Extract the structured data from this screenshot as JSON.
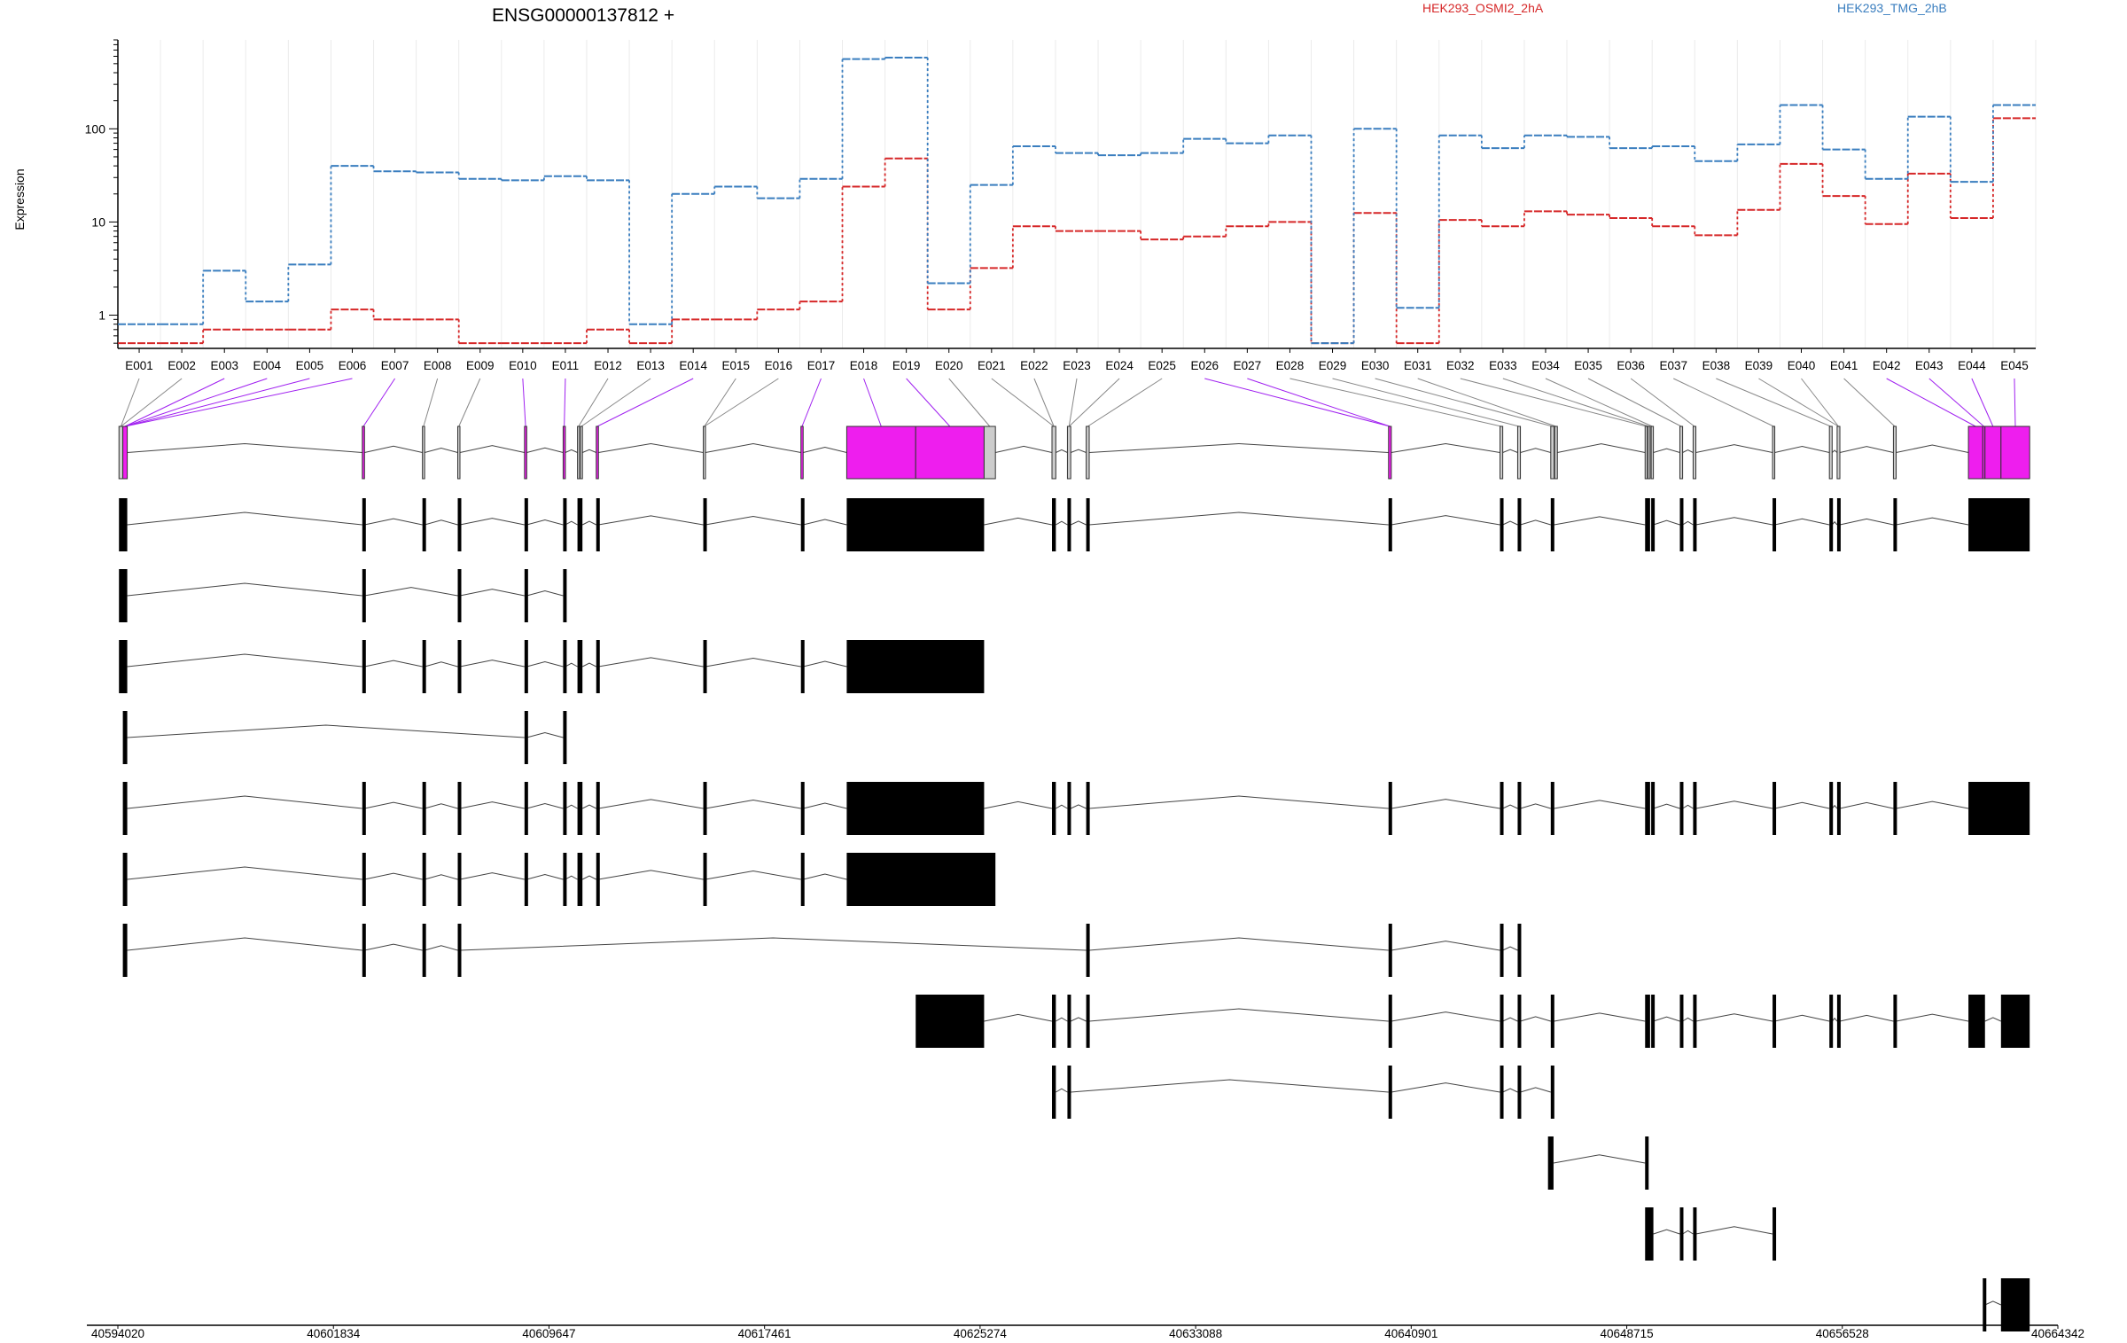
{
  "header": {
    "gene_title": "ENSG00000137812 +",
    "y_axis_label": "Expression"
  },
  "colors": {
    "sample_a": "#d62728",
    "sample_b": "#3a7ebf",
    "highlight_exon": "#ee1eee",
    "normal_exon": "#cccccc",
    "transcript": "#000000"
  },
  "chart_data": {
    "type": "line",
    "y_scale": "log",
    "ylabel": "Expression",
    "y_ticks": [
      "1",
      "10",
      "100"
    ],
    "categories": [
      "E001",
      "E002",
      "E003",
      "E004",
      "E005",
      "E006",
      "E007",
      "E008",
      "E009",
      "E010",
      "E011",
      "E012",
      "E013",
      "E014",
      "E015",
      "E016",
      "E017",
      "E018",
      "E019",
      "E020",
      "E021",
      "E022",
      "E023",
      "E024",
      "E025",
      "E026",
      "E027",
      "E028",
      "E029",
      "E030",
      "E031",
      "E032",
      "E033",
      "E034",
      "E035",
      "E036",
      "E037",
      "E038",
      "E039",
      "E040",
      "E041",
      "E042",
      "E043",
      "E044",
      "E045"
    ],
    "series": [
      {
        "name": "HEK293_OSMI2_2hA",
        "color": "#d62728",
        "values": [
          0.5,
          0.5,
          0.7,
          0.7,
          0.7,
          1.15,
          0.9,
          0.9,
          0.5,
          0.5,
          0.5,
          0.7,
          0.5,
          0.9,
          0.9,
          1.15,
          1.4,
          24,
          48,
          1.15,
          3.2,
          9,
          8,
          8,
          6.5,
          7,
          9,
          10,
          0.5,
          12.5,
          0.5,
          10.5,
          9,
          13,
          12,
          11,
          9,
          7.2,
          13.5,
          42,
          19,
          9.5,
          33,
          11,
          130
        ]
      },
      {
        "name": "HEK293_TMG_2hB",
        "color": "#3a7ebf",
        "values": [
          0.8,
          0.8,
          3.0,
          1.4,
          3.5,
          40,
          35,
          34,
          29,
          28,
          31,
          28,
          0.8,
          20,
          24,
          18,
          29,
          560,
          580,
          2.2,
          25,
          65,
          55,
          52,
          55,
          78,
          70,
          85,
          0.5,
          100,
          1.2,
          85,
          62,
          85,
          82,
          62,
          65,
          45,
          68,
          180,
          60,
          29,
          135,
          27,
          180
        ]
      }
    ],
    "genomic_axis_ticks": [
      "40594020",
      "40601834",
      "40609647",
      "40617461",
      "40625274",
      "40633088",
      "40640901",
      "40648715",
      "40656528",
      "40664342"
    ],
    "exon_bins": [
      {
        "s": 40594060,
        "e": 40594200,
        "hl": false
      },
      {
        "s": 40594200,
        "e": 40594360,
        "hl": true
      },
      {
        "s": 40602880,
        "e": 40602960,
        "hl": true
      },
      {
        "s": 40605060,
        "e": 40605140,
        "hl": false
      },
      {
        "s": 40606340,
        "e": 40606420,
        "hl": false
      },
      {
        "s": 40608760,
        "e": 40608840,
        "hl": true
      },
      {
        "s": 40610160,
        "e": 40610240,
        "hl": true
      },
      {
        "s": 40610680,
        "e": 40610760,
        "hl": false
      },
      {
        "s": 40610780,
        "e": 40610860,
        "hl": false
      },
      {
        "s": 40611360,
        "e": 40611440,
        "hl": true
      },
      {
        "s": 40615240,
        "e": 40615320,
        "hl": false
      },
      {
        "s": 40618780,
        "e": 40618860,
        "hl": true
      },
      {
        "s": 40620440,
        "e": 40622940,
        "hl": true
      },
      {
        "s": 40622940,
        "e": 40625420,
        "hl": true
      },
      {
        "s": 40625420,
        "e": 40625830,
        "hl": false
      },
      {
        "s": 40627880,
        "e": 40628020,
        "hl": false
      },
      {
        "s": 40628440,
        "e": 40628560,
        "hl": false
      },
      {
        "s": 40629120,
        "e": 40629230,
        "hl": false
      },
      {
        "s": 40640080,
        "e": 40640180,
        "hl": true
      },
      {
        "s": 40644120,
        "e": 40644220,
        "hl": false
      },
      {
        "s": 40644760,
        "e": 40644860,
        "hl": false
      },
      {
        "s": 40645960,
        "e": 40646080,
        "hl": false
      },
      {
        "s": 40646100,
        "e": 40646200,
        "hl": false
      },
      {
        "s": 40649380,
        "e": 40649460,
        "hl": false
      },
      {
        "s": 40649480,
        "e": 40649560,
        "hl": false
      },
      {
        "s": 40649600,
        "e": 40649680,
        "hl": false
      },
      {
        "s": 40650640,
        "e": 40650740,
        "hl": false
      },
      {
        "s": 40651120,
        "e": 40651220,
        "hl": false
      },
      {
        "s": 40654000,
        "e": 40654080,
        "hl": false
      },
      {
        "s": 40656060,
        "e": 40656160,
        "hl": false
      },
      {
        "s": 40656340,
        "e": 40656440,
        "hl": false
      },
      {
        "s": 40658380,
        "e": 40658480,
        "hl": false
      },
      {
        "s": 40661100,
        "e": 40661620,
        "hl": true
      },
      {
        "s": 40661620,
        "e": 40661700,
        "hl": true
      },
      {
        "s": 40661700,
        "e": 40662280,
        "hl": true
      },
      {
        "s": 40662280,
        "e": 40663320,
        "hl": true
      }
    ],
    "exon_bin_links": [
      0,
      0,
      1,
      1,
      1,
      1,
      2,
      3,
      4,
      5,
      6,
      7,
      8,
      9,
      10,
      10,
      11,
      12,
      13,
      14,
      15,
      15,
      16,
      16,
      17,
      18,
      18,
      19,
      20,
      21,
      22,
      23,
      24,
      25,
      26,
      27,
      28,
      29,
      30,
      30,
      31,
      32,
      33,
      34,
      35
    ],
    "transcripts": [
      {
        "exons": [
          [
            40594060,
            40594360
          ],
          [
            40602880,
            40602960
          ],
          [
            40605060,
            40605140
          ],
          [
            40606340,
            40606420
          ],
          [
            40608760,
            40608840
          ],
          [
            40610160,
            40610240
          ],
          [
            40610680,
            40610860
          ],
          [
            40611360,
            40611440
          ],
          [
            40615240,
            40615320
          ],
          [
            40618780,
            40618860
          ],
          [
            40620440,
            40625420
          ],
          [
            40627880,
            40628020
          ],
          [
            40628440,
            40628560
          ],
          [
            40629120,
            40629230
          ],
          [
            40640080,
            40640180
          ],
          [
            40644120,
            40644220
          ],
          [
            40644760,
            40644860
          ],
          [
            40645960,
            40646080
          ],
          [
            40649380,
            40649560
          ],
          [
            40649600,
            40649680
          ],
          [
            40650640,
            40650740
          ],
          [
            40651120,
            40651220
          ],
          [
            40654000,
            40654080
          ],
          [
            40656060,
            40656160
          ],
          [
            40656340,
            40656440
          ],
          [
            40658380,
            40658480
          ],
          [
            40661100,
            40663320
          ]
        ]
      },
      {
        "exons": [
          [
            40594060,
            40594360
          ],
          [
            40602880,
            40602960
          ],
          [
            40606340,
            40606420
          ],
          [
            40608760,
            40608840
          ],
          [
            40610160,
            40610240
          ]
        ]
      },
      {
        "exons": [
          [
            40594060,
            40594360
          ],
          [
            40602880,
            40602960
          ],
          [
            40605060,
            40605140
          ],
          [
            40606340,
            40606420
          ],
          [
            40608760,
            40608840
          ],
          [
            40610160,
            40610240
          ],
          [
            40610680,
            40610860
          ],
          [
            40611360,
            40611440
          ],
          [
            40615240,
            40615320
          ],
          [
            40618780,
            40618860
          ],
          [
            40620440,
            40625420
          ]
        ]
      },
      {
        "exons": [
          [
            40594200,
            40594360
          ],
          [
            40608760,
            40608840
          ],
          [
            40610160,
            40610240
          ]
        ]
      },
      {
        "exons": [
          [
            40594200,
            40594360
          ],
          [
            40602880,
            40602960
          ],
          [
            40605060,
            40605140
          ],
          [
            40606340,
            40606420
          ],
          [
            40608760,
            40608840
          ],
          [
            40610160,
            40610240
          ],
          [
            40610680,
            40610860
          ],
          [
            40611360,
            40611440
          ],
          [
            40615240,
            40615320
          ],
          [
            40618780,
            40618860
          ],
          [
            40620440,
            40625420
          ],
          [
            40627880,
            40628020
          ],
          [
            40628440,
            40628560
          ],
          [
            40629120,
            40629230
          ],
          [
            40640080,
            40640180
          ],
          [
            40644120,
            40644220
          ],
          [
            40644760,
            40644860
          ],
          [
            40645960,
            40646080
          ],
          [
            40649380,
            40649560
          ],
          [
            40649600,
            40649680
          ],
          [
            40650640,
            40650740
          ],
          [
            40651120,
            40651220
          ],
          [
            40654000,
            40654080
          ],
          [
            40656060,
            40656160
          ],
          [
            40656340,
            40656440
          ],
          [
            40658380,
            40658480
          ],
          [
            40661100,
            40663320
          ]
        ]
      },
      {
        "exons": [
          [
            40594200,
            40594360
          ],
          [
            40602880,
            40602960
          ],
          [
            40605060,
            40605140
          ],
          [
            40606340,
            40606420
          ],
          [
            40608760,
            40608840
          ],
          [
            40610160,
            40610240
          ],
          [
            40610680,
            40610860
          ],
          [
            40611360,
            40611440
          ],
          [
            40615240,
            40615320
          ],
          [
            40618780,
            40618860
          ],
          [
            40620440,
            40625830
          ]
        ]
      },
      {
        "exons": [
          [
            40594200,
            40594360
          ],
          [
            40602880,
            40602960
          ],
          [
            40605060,
            40605140
          ],
          [
            40606340,
            40606420
          ],
          [
            40629120,
            40629230
          ],
          [
            40640080,
            40640180
          ],
          [
            40644120,
            40644220
          ],
          [
            40644760,
            40644860
          ]
        ]
      },
      {
        "exons": [
          [
            40622940,
            40625420
          ],
          [
            40627880,
            40628020
          ],
          [
            40628440,
            40628560
          ],
          [
            40629120,
            40629230
          ],
          [
            40640080,
            40640180
          ],
          [
            40644120,
            40644220
          ],
          [
            40644760,
            40644860
          ],
          [
            40645960,
            40646080
          ],
          [
            40649380,
            40649560
          ],
          [
            40649600,
            40649680
          ],
          [
            40650640,
            40650740
          ],
          [
            40651120,
            40651220
          ],
          [
            40654000,
            40654080
          ],
          [
            40656060,
            40656160
          ],
          [
            40656340,
            40656440
          ],
          [
            40658380,
            40658480
          ],
          [
            40661100,
            40661700
          ],
          [
            40662280,
            40663320
          ]
        ]
      },
      {
        "exons": [
          [
            40627880,
            40628020
          ],
          [
            40628440,
            40628560
          ],
          [
            40640080,
            40640180
          ],
          [
            40644120,
            40644220
          ],
          [
            40644760,
            40644860
          ],
          [
            40645960,
            40646080
          ]
        ]
      },
      {
        "exons": [
          [
            40645860,
            40646060
          ],
          [
            40649380,
            40649480
          ]
        ]
      },
      {
        "exons": [
          [
            40649380,
            40649680
          ],
          [
            40650640,
            40650740
          ],
          [
            40651120,
            40651220
          ],
          [
            40654000,
            40654080
          ]
        ]
      },
      {
        "exons": [
          [
            40661620,
            40661700
          ],
          [
            40662280,
            40663320
          ]
        ]
      }
    ]
  }
}
